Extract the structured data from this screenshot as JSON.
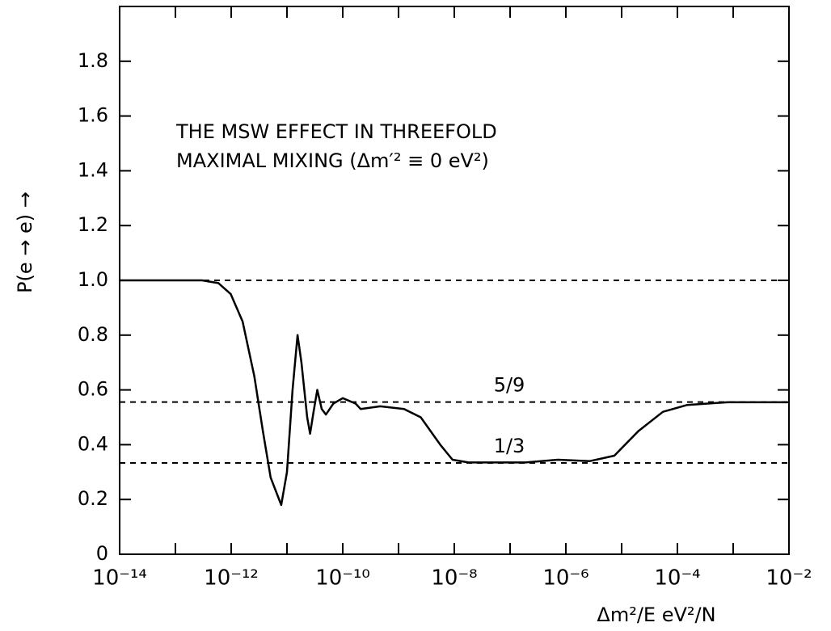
{
  "chart_data": {
    "type": "line",
    "title": [
      "THE MSW EFFECT IN THREEFOLD",
      "MAXIMAL MIXING  (Δm′² ≡ 0 eV²)"
    ],
    "xlabel": "Δm²/E  eV²/N",
    "ylabel": "P(e → e) →",
    "xscale": "log",
    "xlim": [
      1e-14,
      0.01
    ],
    "ylim": [
      0,
      2
    ],
    "xticks": [
      {
        "value": 1e-14,
        "label": "10⁻¹⁴"
      },
      {
        "value": 1e-12,
        "label": "10⁻¹²"
      },
      {
        "value": 1e-10,
        "label": "10⁻¹⁰"
      },
      {
        "value": 1e-08,
        "label": "10⁻⁸"
      },
      {
        "value": 1e-06,
        "label": "10⁻⁶"
      },
      {
        "value": 0.0001,
        "label": "10⁻⁴"
      },
      {
        "value": 0.01,
        "label": "10⁻²"
      }
    ],
    "minor_xticks": [
      1e-13,
      1e-11,
      1e-09,
      1e-07,
      1e-05,
      0.001
    ],
    "yticks": [
      0,
      0.2,
      0.4,
      0.6,
      0.8,
      {
        "value": 1,
        "label": "1.0"
      },
      1.2,
      1.4,
      1.6,
      1.8
    ],
    "reference_lines": [
      1,
      0.5556,
      0.3333
    ],
    "annotations": [
      "5/9",
      "1/3"
    ],
    "series": [
      {
        "name": "P(e → e)",
        "color": "#000000",
        "x": [
          1e-14,
          3e-13,
          5.9e-13,
          9.8e-13,
          1.6e-12,
          2.6e-12,
          3.7e-12,
          5.1e-12,
          7.9e-12,
          1e-11,
          1.26e-11,
          1.55e-11,
          1.82e-11,
          2.3e-11,
          2.6e-11,
          3e-11,
          3.5e-11,
          4.2e-11,
          5e-11,
          6.8e-11,
          1e-10,
          1.7e-10,
          2.1e-10,
          4.7e-10,
          1.26e-09,
          2.5e-09,
          5.6e-09,
          9.3e-09,
          1.8e-08,
          1.9e-07,
          7.2e-07,
          2.7e-06,
          7.4e-06,
          2e-05,
          5.5e-05,
          0.00015,
          0.00079,
          0.01
        ],
        "values": [
          1.0,
          1.0,
          0.99,
          0.95,
          0.85,
          0.65,
          0.45,
          0.28,
          0.18,
          0.3,
          0.6,
          0.8,
          0.7,
          0.5,
          0.44,
          0.52,
          0.6,
          0.53,
          0.51,
          0.55,
          0.57,
          0.55,
          0.53,
          0.54,
          0.53,
          0.5,
          0.4,
          0.345,
          0.335,
          0.335,
          0.345,
          0.34,
          0.36,
          0.45,
          0.52,
          0.545,
          0.555,
          0.555
        ]
      }
    ]
  }
}
